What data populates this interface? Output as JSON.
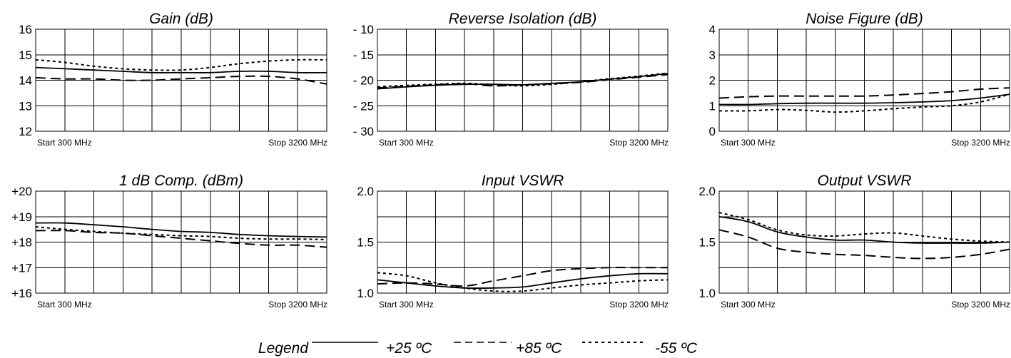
{
  "chart_data": [
    {
      "type": "line",
      "title": "Gain (dB)",
      "ylim": [
        12,
        16
      ],
      "yticks": [
        "16",
        "15",
        "14",
        "13",
        "12"
      ],
      "x_start_label": "Start 300 MHz",
      "x_stop_label": "Stop 3200 MHz",
      "xlim": [
        300,
        3200
      ],
      "grid": true,
      "x": [
        300,
        590,
        880,
        1170,
        1460,
        1750,
        2040,
        2330,
        2620,
        2910,
        3200
      ],
      "series": [
        {
          "name": "+25 ºC",
          "style": "solid",
          "values": [
            14.5,
            14.45,
            14.4,
            14.35,
            14.3,
            14.3,
            14.3,
            14.35,
            14.35,
            14.3,
            14.3
          ]
        },
        {
          "name": "+85 ºC",
          "style": "dashed",
          "values": [
            14.1,
            14.05,
            14.05,
            14.0,
            14.0,
            14.05,
            14.1,
            14.15,
            14.15,
            14.05,
            13.85
          ]
        },
        {
          "name": "-55 ºC",
          "style": "dotted",
          "values": [
            14.8,
            14.7,
            14.55,
            14.45,
            14.4,
            14.4,
            14.5,
            14.65,
            14.75,
            14.8,
            14.8
          ]
        }
      ]
    },
    {
      "type": "line",
      "title": "Reverse Isolation (dB)",
      "ylim": [
        -30,
        -10
      ],
      "yticks": [
        "- 10",
        "- 15",
        "- 20",
        "- 25",
        "- 30"
      ],
      "x_start_label": "Start 300 MHz",
      "x_stop_label": "Stop 3200 MHz",
      "xlim": [
        300,
        3200
      ],
      "grid": true,
      "x": [
        300,
        590,
        880,
        1170,
        1460,
        1750,
        2040,
        2330,
        2620,
        2910,
        3200
      ],
      "series": [
        {
          "name": "+25 ºC",
          "style": "solid",
          "values": [
            -21.7,
            -21.3,
            -21.0,
            -20.8,
            -20.8,
            -20.9,
            -20.6,
            -20.3,
            -19.8,
            -19.3,
            -18.7
          ]
        },
        {
          "name": "+85 ºC",
          "style": "dashed",
          "values": [
            -21.5,
            -21.2,
            -20.9,
            -20.7,
            -21.1,
            -20.9,
            -20.7,
            -20.4,
            -19.9,
            -19.4,
            -18.9
          ]
        },
        {
          "name": "-55 ºC",
          "style": "dotted",
          "values": [
            -21.3,
            -21.0,
            -20.8,
            -20.6,
            -20.9,
            -21.1,
            -20.8,
            -20.3,
            -19.7,
            -19.2,
            -18.6
          ]
        }
      ]
    },
    {
      "type": "line",
      "title": "Noise Figure (dB)",
      "ylim": [
        0,
        4
      ],
      "yticks": [
        "4",
        "3",
        "2",
        "1",
        "0"
      ],
      "x_start_label": "Start 300 MHz",
      "x_stop_label": "Stop 3200 MHz",
      "xlim": [
        300,
        3200
      ],
      "grid": true,
      "x": [
        300,
        590,
        880,
        1170,
        1460,
        1750,
        2040,
        2330,
        2620,
        2910,
        3200
      ],
      "series": [
        {
          "name": "+25 ºC",
          "style": "solid",
          "values": [
            1.05,
            1.05,
            1.08,
            1.1,
            1.1,
            1.1,
            1.12,
            1.15,
            1.2,
            1.3,
            1.45
          ]
        },
        {
          "name": "+85 ºC",
          "style": "dashed",
          "values": [
            1.3,
            1.35,
            1.38,
            1.38,
            1.38,
            1.38,
            1.42,
            1.48,
            1.55,
            1.65,
            1.7
          ]
        },
        {
          "name": "-55 ºC",
          "style": "dotted",
          "values": [
            0.8,
            0.8,
            0.85,
            0.82,
            0.75,
            0.8,
            0.88,
            0.95,
            1.0,
            1.15,
            1.45
          ]
        }
      ]
    },
    {
      "type": "line",
      "title": "1 dB Comp. (dBm)",
      "ylim": [
        16,
        20
      ],
      "yticks": [
        "+20",
        "+19",
        "+18",
        "+17",
        "+16"
      ],
      "x_start_label": "Start 300 MHz",
      "x_stop_label": "Stop 3200 MHz",
      "xlim": [
        300,
        3200
      ],
      "grid": true,
      "x": [
        300,
        590,
        880,
        1170,
        1460,
        1750,
        2040,
        2330,
        2620,
        2910,
        3200
      ],
      "series": [
        {
          "name": "+25 ºC",
          "style": "solid",
          "values": [
            18.75,
            18.75,
            18.68,
            18.6,
            18.5,
            18.42,
            18.38,
            18.3,
            18.25,
            18.22,
            18.2
          ]
        },
        {
          "name": "+85 ºC",
          "style": "dashed",
          "values": [
            18.45,
            18.45,
            18.38,
            18.35,
            18.25,
            18.15,
            18.05,
            17.95,
            17.88,
            17.88,
            17.8
          ]
        },
        {
          "name": "-55 ºC",
          "style": "dotted",
          "values": [
            18.6,
            18.5,
            18.42,
            18.35,
            18.3,
            18.25,
            18.22,
            18.15,
            18.12,
            18.12,
            18.1
          ]
        }
      ]
    },
    {
      "type": "line",
      "title": "Input VSWR",
      "ylim": [
        1.0,
        2.0
      ],
      "yticks": [
        "2.0",
        "1.5",
        "1.0"
      ],
      "x_start_label": "Start 300 MHz",
      "x_stop_label": "Stop 3200 MHz",
      "xlim": [
        300,
        3200
      ],
      "grid": true,
      "x": [
        300,
        590,
        880,
        1170,
        1460,
        1750,
        2040,
        2330,
        2620,
        2910,
        3200
      ],
      "series": [
        {
          "name": "+25 ºC",
          "style": "solid",
          "values": [
            1.13,
            1.1,
            1.07,
            1.05,
            1.05,
            1.06,
            1.1,
            1.14,
            1.17,
            1.19,
            1.19
          ]
        },
        {
          "name": "+85 ºC",
          "style": "dashed",
          "values": [
            1.09,
            1.1,
            1.09,
            1.07,
            1.12,
            1.17,
            1.22,
            1.24,
            1.25,
            1.25,
            1.25
          ]
        },
        {
          "name": "-55 ºC",
          "style": "dotted",
          "values": [
            1.2,
            1.17,
            1.1,
            1.05,
            1.02,
            1.02,
            1.05,
            1.08,
            1.1,
            1.12,
            1.13
          ]
        }
      ]
    },
    {
      "type": "line",
      "title": "Output VSWR",
      "ylim": [
        1.0,
        2.0
      ],
      "yticks": [
        "2.0",
        "1.5",
        "1.0"
      ],
      "x_start_label": "Start 300 MHz",
      "x_stop_label": "Stop 3200 MHz",
      "xlim": [
        300,
        3200
      ],
      "grid": true,
      "x": [
        300,
        590,
        880,
        1170,
        1460,
        1750,
        2040,
        2330,
        2620,
        2910,
        3200
      ],
      "series": [
        {
          "name": "+25 ºC",
          "style": "solid",
          "values": [
            1.75,
            1.7,
            1.6,
            1.55,
            1.52,
            1.52,
            1.5,
            1.49,
            1.49,
            1.49,
            1.5
          ]
        },
        {
          "name": "+85 ºC",
          "style": "dashed",
          "values": [
            1.62,
            1.55,
            1.44,
            1.4,
            1.38,
            1.37,
            1.35,
            1.34,
            1.35,
            1.38,
            1.43
          ]
        },
        {
          "name": "-55 ºC",
          "style": "dotted",
          "values": [
            1.79,
            1.72,
            1.62,
            1.57,
            1.56,
            1.58,
            1.59,
            1.56,
            1.53,
            1.51,
            1.5
          ]
        }
      ]
    }
  ],
  "legend": {
    "label": "Legend",
    "items": [
      {
        "text": "+25 ºC",
        "style": "solid"
      },
      {
        "text": "+85 ºC",
        "style": "dashed"
      },
      {
        "text": "-55 ºC",
        "style": "dotted"
      }
    ]
  }
}
